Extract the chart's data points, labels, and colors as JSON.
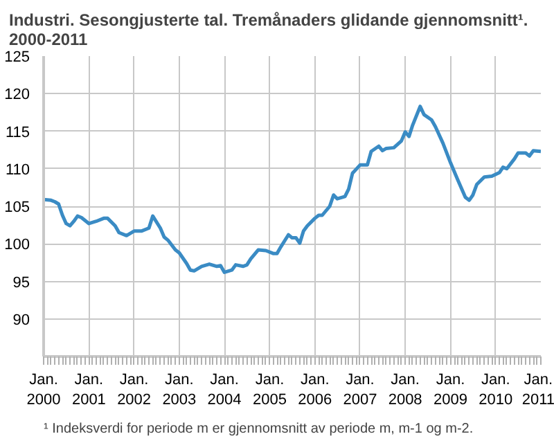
{
  "chart_data": {
    "type": "line",
    "title": "Industri. Sesongjusterte tal. Tremånaders glidande gjennomsnitt¹.\n2000-2011",
    "annotations": [
      "¹ Indeksverdi for periode m er gjennomsnitt av periode m, m-1 og m-2."
    ],
    "x": [
      "2000-01",
      "2000-03",
      "2000-04",
      "2000-05",
      "2000-06",
      "2000-07",
      "2000-08",
      "2000-09",
      "2000-10",
      "2000-11",
      "2001-01",
      "2001-03",
      "2001-05",
      "2001-06",
      "2001-08",
      "2001-09",
      "2001-11",
      "2002-01",
      "2002-03",
      "2002-05",
      "2002-06",
      "2002-08",
      "2002-09",
      "2002-10",
      "2002-12",
      "2003-01",
      "2003-03",
      "2003-04",
      "2003-05",
      "2003-07",
      "2003-09",
      "2003-11",
      "2003-12",
      "2004-01",
      "2004-03",
      "2004-04",
      "2004-06",
      "2004-07",
      "2004-08",
      "2004-10",
      "2004-12",
      "2005-02",
      "2005-03",
      "2005-04",
      "2005-06",
      "2005-07",
      "2005-08",
      "2005-09",
      "2005-10",
      "2005-11",
      "2006-01",
      "2006-02",
      "2006-03",
      "2006-05",
      "2006-06",
      "2006-07",
      "2006-09",
      "2006-10",
      "2006-11",
      "2007-01",
      "2007-03",
      "2007-04",
      "2007-06",
      "2007-07",
      "2007-08",
      "2007-10",
      "2007-12",
      "2008-01",
      "2008-02",
      "2008-03",
      "2008-05",
      "2008-06",
      "2008-08",
      "2008-09",
      "2008-11",
      "2009-01",
      "2009-03",
      "2009-05",
      "2009-06",
      "2009-07",
      "2009-08",
      "2009-10",
      "2009-12",
      "2010-02",
      "2010-03",
      "2010-04",
      "2010-06",
      "2010-07",
      "2010-09",
      "2010-10",
      "2010-11",
      "2011-01"
    ],
    "series": [
      {
        "color": "#3a8bc4",
        "values": [
          105.9,
          105.8,
          105.6,
          105.3,
          103.8,
          102.7,
          102.4,
          103.0,
          103.7,
          103.5,
          102.7,
          103.0,
          103.4,
          103.4,
          102.4,
          101.5,
          101.1,
          101.7,
          101.7,
          102.1,
          103.7,
          102.1,
          100.9,
          100.5,
          99.2,
          98.8,
          97.4,
          96.5,
          96.4,
          97.0,
          97.3,
          97.0,
          97.1,
          96.2,
          96.5,
          97.2,
          97.0,
          97.2,
          98.0,
          99.2,
          99.1,
          98.7,
          98.7,
          99.6,
          101.2,
          100.8,
          100.8,
          100.1,
          101.7,
          102.4,
          103.4,
          103.8,
          103.8,
          105.0,
          106.5,
          106.0,
          106.3,
          107.3,
          109.4,
          110.5,
          110.5,
          112.3,
          113.0,
          112.4,
          112.7,
          112.8,
          113.7,
          114.9,
          114.3,
          115.8,
          118.3,
          117.2,
          116.5,
          115.6,
          113.4,
          110.8,
          108.5,
          106.2,
          105.8,
          106.5,
          107.9,
          108.9,
          109.0,
          109.5,
          110.2,
          110.0,
          111.3,
          112.1,
          112.1,
          111.7,
          112.4,
          112.3
        ]
      }
    ],
    "xlim": [
      "2000-01",
      "2011-01"
    ],
    "xticks": [
      {
        "value": "2000-01",
        "label": "Jan.\n2000"
      },
      {
        "value": "2001-01",
        "label": "Jan.\n2001"
      },
      {
        "value": "2002-01",
        "label": "Jan.\n2002"
      },
      {
        "value": "2003-01",
        "label": "Jan.\n2003"
      },
      {
        "value": "2004-01",
        "label": "Jan.\n2004"
      },
      {
        "value": "2005-01",
        "label": "Jan.\n2005"
      },
      {
        "value": "2006-01",
        "label": "Jan.\n2006"
      },
      {
        "value": "2007-01",
        "label": "Jan.\n2007"
      },
      {
        "value": "2008-01",
        "label": "Jan.\n2008"
      },
      {
        "value": "2009-01",
        "label": "Jan.\n2009"
      },
      {
        "value": "2010-01",
        "label": "Jan.\n2010"
      },
      {
        "value": "2011-01",
        "label": "Jan.\n2011"
      }
    ],
    "ylim": [
      85,
      125
    ],
    "yticks": [
      90,
      95,
      100,
      105,
      110,
      115,
      120,
      125
    ],
    "grid": true,
    "marker": "none",
    "line_style": "solid"
  }
}
